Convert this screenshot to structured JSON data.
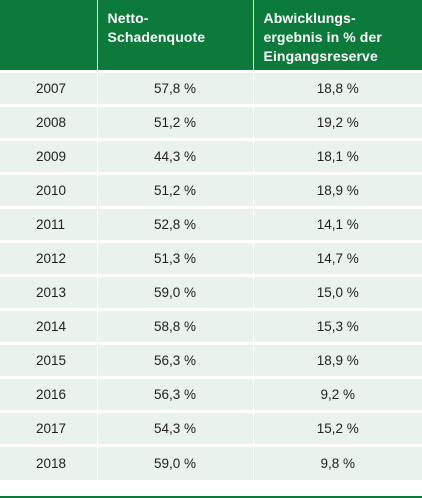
{
  "table": {
    "headers": [
      "",
      "Netto-\nSchadenquote",
      "Abwicklungs-\nergebnis in % der\nEingangsreserve"
    ],
    "rows": [
      [
        "2007",
        "57,8 %",
        "18,8 %"
      ],
      [
        "2008",
        "51,2 %",
        "19,2 %"
      ],
      [
        "2009",
        "44,3 %",
        "18,1 %"
      ],
      [
        "2010",
        "51,2 %",
        "18,9 %"
      ],
      [
        "2011",
        "52,8 %",
        "14,1 %"
      ],
      [
        "2012",
        "51,3 %",
        "14,7 %"
      ],
      [
        "2013",
        "59,0 %",
        "15,0 %"
      ],
      [
        "2014",
        "58,8 %",
        "15,3 %"
      ],
      [
        "2015",
        "56,3 %",
        "18,9 %"
      ],
      [
        "2016",
        "56,3 %",
        "9,2 %"
      ],
      [
        "2017",
        "54,3 %",
        "15,2 %"
      ],
      [
        "2018",
        "59,0 %",
        "9,8 %"
      ]
    ]
  },
  "colors": {
    "header_bg": "#0b7a3b",
    "row_bg": "#e9f2ec",
    "text": "#222222"
  }
}
